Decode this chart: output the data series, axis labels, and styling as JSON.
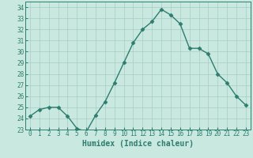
{
  "x": [
    0,
    1,
    2,
    3,
    4,
    5,
    6,
    7,
    8,
    9,
    10,
    11,
    12,
    13,
    14,
    15,
    16,
    17,
    18,
    19,
    20,
    21,
    22,
    23
  ],
  "y": [
    24.2,
    24.8,
    25.0,
    25.0,
    24.2,
    23.1,
    22.8,
    24.3,
    25.5,
    27.2,
    29.0,
    30.8,
    32.0,
    32.7,
    33.8,
    33.3,
    32.5,
    30.3,
    30.3,
    29.8,
    28.0,
    27.2,
    26.0,
    25.2
  ],
  "line_color": "#2e7d6e",
  "marker": "D",
  "marker_size": 2.5,
  "bg_color": "#c8e8e0",
  "grid_color": "#a8ccc4",
  "xlabel": "Humidex (Indice chaleur)",
  "ylim": [
    23,
    34.5
  ],
  "xlim": [
    -0.5,
    23.5
  ],
  "yticks": [
    23,
    24,
    25,
    26,
    27,
    28,
    29,
    30,
    31,
    32,
    33,
    34
  ],
  "xticks": [
    0,
    1,
    2,
    3,
    4,
    5,
    6,
    7,
    8,
    9,
    10,
    11,
    12,
    13,
    14,
    15,
    16,
    17,
    18,
    19,
    20,
    21,
    22,
    23
  ],
  "tick_label_size": 5.5,
  "xlabel_size": 7.0,
  "line_width": 1.0
}
